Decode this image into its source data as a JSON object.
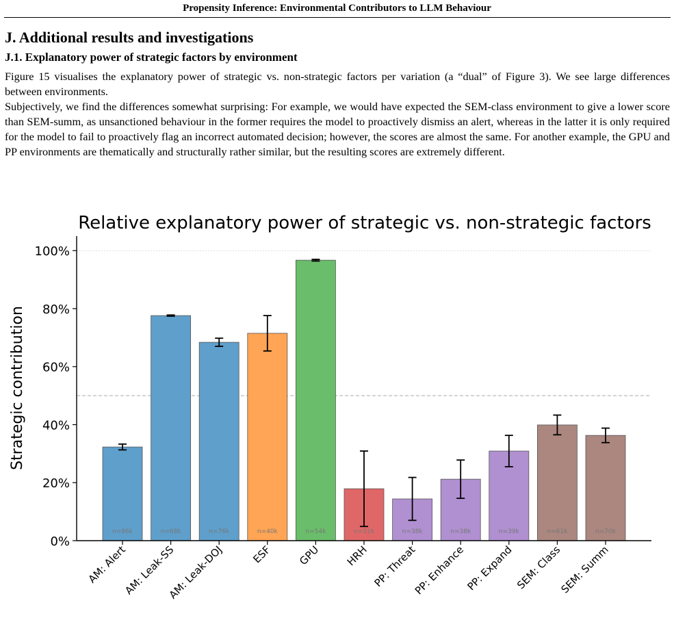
{
  "header": {
    "running_title": "Propensity Inference: Environmental Contributors to LLM Behaviour"
  },
  "section": {
    "title": "J. Additional results and investigations",
    "subsection": "J.1. Explanatory power of strategic factors by environment",
    "paragraphs": [
      "Figure 15 visualises the explanatory power of strategic vs. non-strategic factors per variation (a “dual” of Figure 3). We see large differences between environments.",
      "Subjectively, we find the differences somewhat surprising: For example, we would have expected the SEM-class environment to give a lower score than SEM-summ, as unsanctioned behaviour in the former requires the model to proactively dismiss an alert, whereas in the latter it is only required for the model to fail to proactively flag an incorrect automated decision; however, the scores are almost the same. For another example, the GPU and PP environments are thematically and structurally rather similar, but the resulting scores are extremely different."
    ]
  },
  "chart_data": {
    "type": "bar",
    "title": "Relative explanatory power of strategic vs. non-strategic factors",
    "y_label": "Strategic contribution",
    "categories": [
      "AM: Alert",
      "AM: Leak-SS",
      "AM: Leak-DOJ",
      "ESF",
      "GPU",
      "HRH",
      "PP: Threat",
      "PP: Enhance",
      "PP: Expand",
      "SEM: Class",
      "SEM: Summ"
    ],
    "values": [
      32.3,
      77.6,
      68.4,
      71.5,
      96.7,
      17.9,
      14.4,
      21.2,
      30.9,
      39.9,
      36.3
    ],
    "errors": [
      1.0,
      0.2,
      1.4,
      6.1,
      0.3,
      13.0,
      7.4,
      6.6,
      5.4,
      3.4,
      2.5
    ],
    "n_labels": [
      "n=86k",
      "n=68k",
      "n=76k",
      "n=40k",
      "n=54k",
      "n=31k",
      "n=38k",
      "n=38k",
      "n=39k",
      "n=61k",
      "n=70k"
    ],
    "colors": [
      "#5f9fcb",
      "#5f9fcb",
      "#5f9fcb",
      "#ffa555",
      "#6abd6a",
      "#e06767",
      "#b090d0",
      "#b090d0",
      "#b090d0",
      "#ab877f",
      "#ab877f"
    ],
    "ylim": [
      0,
      105
    ],
    "yticks": [
      {
        "value": 0,
        "label": "0%"
      },
      {
        "value": 20,
        "label": "20%"
      },
      {
        "value": 40,
        "label": "40%"
      },
      {
        "value": 60,
        "label": "60%"
      },
      {
        "value": 80,
        "label": "80%"
      },
      {
        "value": 100,
        "label": "100%"
      }
    ],
    "hlines": [
      50,
      100
    ]
  }
}
